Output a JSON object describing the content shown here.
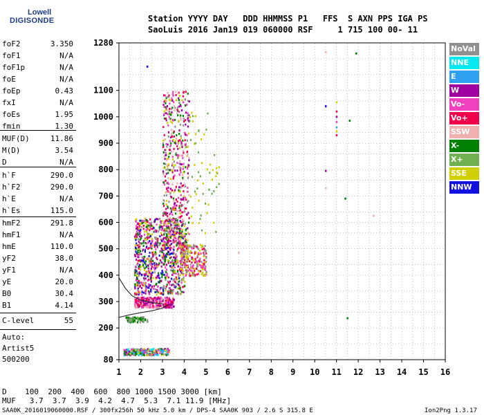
{
  "logo": {
    "line1": "Lowell",
    "line2": "DIGISONDE"
  },
  "header": {
    "line1": "Station YYYY DAY   DDD HHMMSS P1   FFS  S AXN PPS IGA PS",
    "line2": "SaoLuis 2016 Jan19 019 060000 RSF     1 715 100 00- 11"
  },
  "params": {
    "group1": [
      {
        "name": "foF2",
        "value": "3.350"
      },
      {
        "name": "foF1",
        "value": "N/A"
      },
      {
        "name": "foF1p",
        "value": "N/A"
      },
      {
        "name": "foE",
        "value": "N/A"
      },
      {
        "name": "foEp",
        "value": "0.43"
      },
      {
        "name": "fxI",
        "value": "N/A"
      },
      {
        "name": "foEs",
        "value": "1.95"
      },
      {
        "name": "fmin",
        "value": "1.30"
      }
    ],
    "group2": [
      {
        "name": "MUF(D)",
        "value": "11.86"
      },
      {
        "name": "M(D)",
        "value": "3.54"
      },
      {
        "name": "D",
        "value": "N/A"
      }
    ],
    "group3": [
      {
        "name": "h`F",
        "value": "290.0"
      },
      {
        "name": "h`F2",
        "value": "290.0"
      },
      {
        "name": "h`E",
        "value": "N/A"
      },
      {
        "name": "h`Es",
        "value": "115.0"
      }
    ],
    "group4": [
      {
        "name": "hmF2",
        "value": "291.8"
      },
      {
        "name": "hmF1",
        "value": "N/A"
      },
      {
        "name": "hmE",
        "value": "110.0"
      },
      {
        "name": "yF2",
        "value": "38.0"
      },
      {
        "name": "yF1",
        "value": "N/A"
      },
      {
        "name": "yE",
        "value": "20.0"
      },
      {
        "name": "B0",
        "value": "30.4"
      },
      {
        "name": "B1",
        "value": "4.14"
      }
    ],
    "clevel": {
      "name": "C-level",
      "value": "55"
    },
    "autoscale": [
      "Auto:",
      "Artist5",
      "500200"
    ]
  },
  "legend": [
    {
      "label": "NoVal",
      "color": "#909090"
    },
    {
      "label": "NNE",
      "color": "#00e8f0"
    },
    {
      "label": "E",
      "color": "#30a0f0"
    },
    {
      "label": "W",
      "color": "#a000a0"
    },
    {
      "label": "Vo-",
      "color": "#f040c0"
    },
    {
      "label": "Vo+",
      "color": "#f0004a"
    },
    {
      "label": "SSW",
      "color": "#f0b0b0"
    },
    {
      "label": "X-",
      "color": "#008000"
    },
    {
      "label": "X+",
      "color": "#70b050"
    },
    {
      "label": "SSE",
      "color": "#d0d000"
    },
    {
      "label": "NNW",
      "color": "#1010e0"
    }
  ],
  "footer": {
    "d_row": "D    100  200  400  600  800 1000 1500 3000 [km]",
    "muf_row": "MUF   3.7  3.7  3.9  4.2  4.7  5.3  7.1 11.9 [MHz]",
    "file_info": "SAA0K_2016019060000.RSF / 300fx256h 50 kHz 5.0 km / DPS-4 SAA0K 903 / 2.6 S 315.8 E",
    "version": "Ion2Png 1.3.17"
  },
  "chart_data": {
    "type": "scatter",
    "title": "",
    "xlabel": "",
    "ylabel": "",
    "xlim": [
      1,
      16
    ],
    "ylim": [
      80,
      1280
    ],
    "x_ticks": [
      "1",
      "2",
      "3",
      "4",
      "5",
      "6",
      "7",
      "8",
      "9",
      "10",
      "11",
      "12",
      "13",
      "14",
      "15",
      "16"
    ],
    "y_ticks": [
      "80",
      "200",
      "300",
      "400",
      "500",
      "600",
      "700",
      "800",
      "900",
      "1000",
      "1100",
      "1280"
    ],
    "y_tick_values": [
      80,
      200,
      300,
      400,
      500,
      600,
      700,
      800,
      900,
      1000,
      1100,
      1280
    ],
    "y_grid_values": [
      80,
      140,
      200,
      260,
      300,
      340,
      400,
      440,
      500,
      560,
      600,
      640,
      700,
      760,
      800,
      860,
      900,
      940,
      1000,
      1060,
      1100,
      1160,
      1220,
      1280
    ],
    "grid": true,
    "legend_position": "right",
    "trace_x_curve": {
      "x": [
        1.0,
        1.5,
        2.0,
        2.5,
        3.0,
        3.3
      ],
      "y": [
        240,
        250,
        258,
        265,
        275,
        290
      ]
    },
    "trace_o_curve": {
      "x": [
        1.0,
        1.3,
        1.6,
        2.0,
        2.6,
        3.0
      ],
      "y": [
        390,
        350,
        322,
        305,
        295,
        292
      ]
    },
    "scatter_regions": [
      {
        "x": [
          1.7,
          4.0
        ],
        "y": [
          330,
          620
        ],
        "n": 900,
        "colors": [
          "Vo-",
          "Vo+",
          "W",
          "X-",
          "NoVal",
          "SSE",
          "NNW"
        ]
      },
      {
        "x": [
          3.0,
          4.2
        ],
        "y": [
          500,
          1100
        ],
        "n": 550,
        "colors": [
          "Vo-",
          "Vo+",
          "X-",
          "SSE",
          "NoVal",
          "W",
          "SSW"
        ]
      },
      {
        "x": [
          1.7,
          3.5
        ],
        "y": [
          280,
          320
        ],
        "n": 350,
        "colors": [
          "Vo+",
          "Vo-",
          "SSW",
          "W"
        ]
      },
      {
        "x": [
          3.8,
          5.0
        ],
        "y": [
          400,
          520
        ],
        "n": 260,
        "colors": [
          "SSE",
          "Vo-",
          "Vo+",
          "NoVal"
        ]
      },
      {
        "x": [
          4.2,
          5.6
        ],
        "y": [
          560,
          1040
        ],
        "n": 60,
        "colors": [
          "SSE",
          "X+"
        ]
      },
      {
        "x": [
          1.2,
          3.3
        ],
        "y": [
          100,
          125
        ],
        "n": 260,
        "colors": [
          "W",
          "SSE",
          "Vo-",
          "X-",
          "NNE",
          "E",
          "NoVal"
        ]
      },
      {
        "x": [
          1.3,
          2.3
        ],
        "y": [
          225,
          245
        ],
        "n": 80,
        "colors": [
          "NoVal",
          "X-",
          "X+"
        ]
      }
    ],
    "isolated_points": [
      {
        "x": 10.5,
        "y": 1245,
        "color": "SSW"
      },
      {
        "x": 11.9,
        "y": 1240,
        "color": "X-"
      },
      {
        "x": 10.5,
        "y": 1040,
        "color": "NNW"
      },
      {
        "x": 11.0,
        "y": 1055,
        "color": "SSE"
      },
      {
        "x": 11.0,
        "y": 1020,
        "color": "Vo+"
      },
      {
        "x": 11.0,
        "y": 1000,
        "color": "W"
      },
      {
        "x": 11.0,
        "y": 980,
        "color": "Vo-"
      },
      {
        "x": 11.0,
        "y": 960,
        "color": "E"
      },
      {
        "x": 11.0,
        "y": 945,
        "color": "SSE"
      },
      {
        "x": 11.0,
        "y": 930,
        "color": "Vo+"
      },
      {
        "x": 11.6,
        "y": 985,
        "color": "X-"
      },
      {
        "x": 10.5,
        "y": 795,
        "color": "W"
      },
      {
        "x": 10.5,
        "y": 730,
        "color": "SSW"
      },
      {
        "x": 11.4,
        "y": 690,
        "color": "X-"
      },
      {
        "x": 12.7,
        "y": 625,
        "color": "SSW"
      },
      {
        "x": 6.5,
        "y": 485,
        "color": "SSW"
      },
      {
        "x": 11.5,
        "y": 237,
        "color": "X-"
      },
      {
        "x": 2.3,
        "y": 1190,
        "color": "NNW"
      }
    ]
  }
}
